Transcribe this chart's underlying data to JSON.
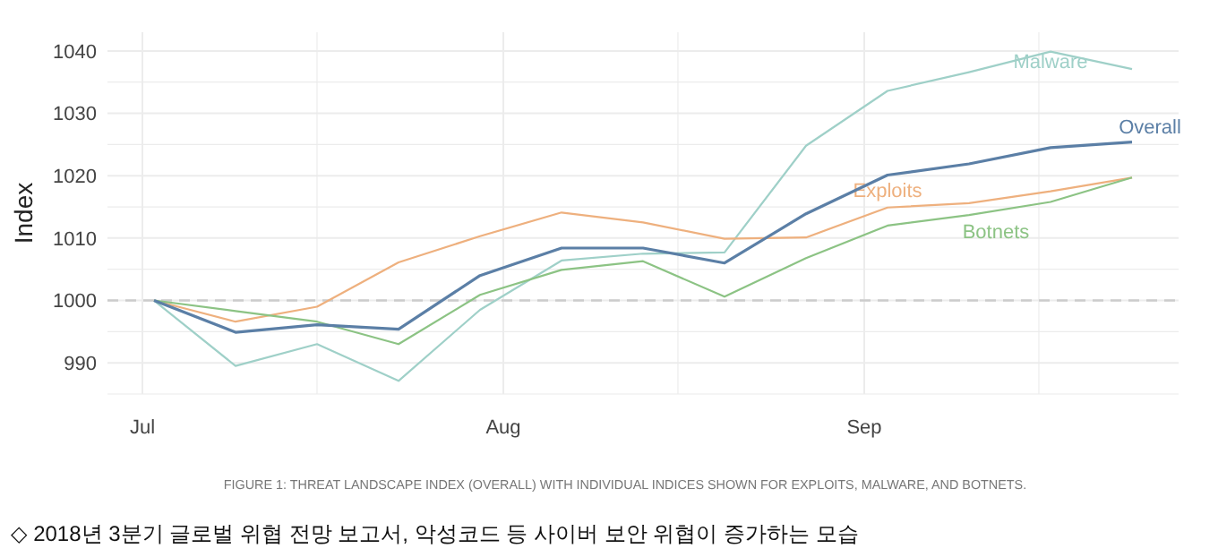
{
  "chart_data": {
    "type": "line",
    "ylabel": "Index",
    "x": [
      "2018-07-02",
      "2018-07-09",
      "2018-07-16",
      "2018-07-23",
      "2018-07-30",
      "2018-08-06",
      "2018-08-13",
      "2018-08-20",
      "2018-08-27",
      "2018-09-03",
      "2018-09-10",
      "2018-09-17",
      "2018-09-24"
    ],
    "xlim": [
      "2018-06-28",
      "2018-09-28"
    ],
    "xticks": [
      {
        "value": "2018-07-01",
        "label": "Jul"
      },
      {
        "value": "2018-07-16",
        "label": null
      },
      {
        "value": "2018-08-01",
        "label": "Aug"
      },
      {
        "value": "2018-08-16",
        "label": null
      },
      {
        "value": "2018-09-01",
        "label": "Sep"
      },
      {
        "value": "2018-09-16",
        "label": null
      }
    ],
    "ylim": [
      985,
      1043
    ],
    "yticks": [
      {
        "value": 985,
        "label": null
      },
      990,
      {
        "value": 995,
        "label": null
      },
      1000,
      {
        "value": 1005,
        "label": null
      },
      1010,
      {
        "value": 1015,
        "label": null
      },
      1020,
      {
        "value": 1025,
        "label": null
      },
      1030,
      {
        "value": 1035,
        "label": null
      },
      1040
    ],
    "series": [
      {
        "name": "Malware",
        "color": "#9fd0c8",
        "values": [
          1000,
          989.5,
          993,
          987.1,
          998.5,
          1006.4,
          1007.5,
          1007.7,
          1024.8,
          1033.6,
          1036.6,
          1039.9,
          1037.1
        ]
      },
      {
        "name": "Exploits",
        "color": "#eeb07e",
        "values": [
          1000,
          996.6,
          999,
          1006.1,
          1010.3,
          1014.1,
          1012.5,
          1009.9,
          1010.1,
          1014.9,
          1015.6,
          1017.5,
          1019.7
        ]
      },
      {
        "name": "Botnets",
        "color": "#8cc384",
        "values": [
          1000,
          998.3,
          996.6,
          993,
          1000.9,
          1004.9,
          1006.3,
          1000.6,
          1006.8,
          1012,
          1013.7,
          1015.8,
          1019.7
        ]
      },
      {
        "name": "Overall",
        "color": "#5b7fa6",
        "values": [
          1000,
          994.9,
          996.1,
          995.4,
          1004,
          1008.4,
          1008.4,
          1006,
          1013.9,
          1020.1,
          1021.9,
          1024.5,
          1025.4
        ]
      }
    ],
    "ref_lines": [
      {
        "axis": "y",
        "value": 1000,
        "color": "#cccccc",
        "line_style": "dashed"
      }
    ],
    "grid": true,
    "legend": false,
    "marker": "none",
    "line_style": "solid",
    "annotations": [
      "FIGURE 1: THREAT LANDSCAPE INDEX (OVERALL) WITH INDIVIDUAL INDICES SHOWN FOR EXPLOITS, MALWARE, AND BOTNETS.",
      "◇ 2018년 3분기 글로벌 위협 전망 보고서, 악성코드 등 사이버 보안 위협이 증가하는 모습"
    ]
  }
}
